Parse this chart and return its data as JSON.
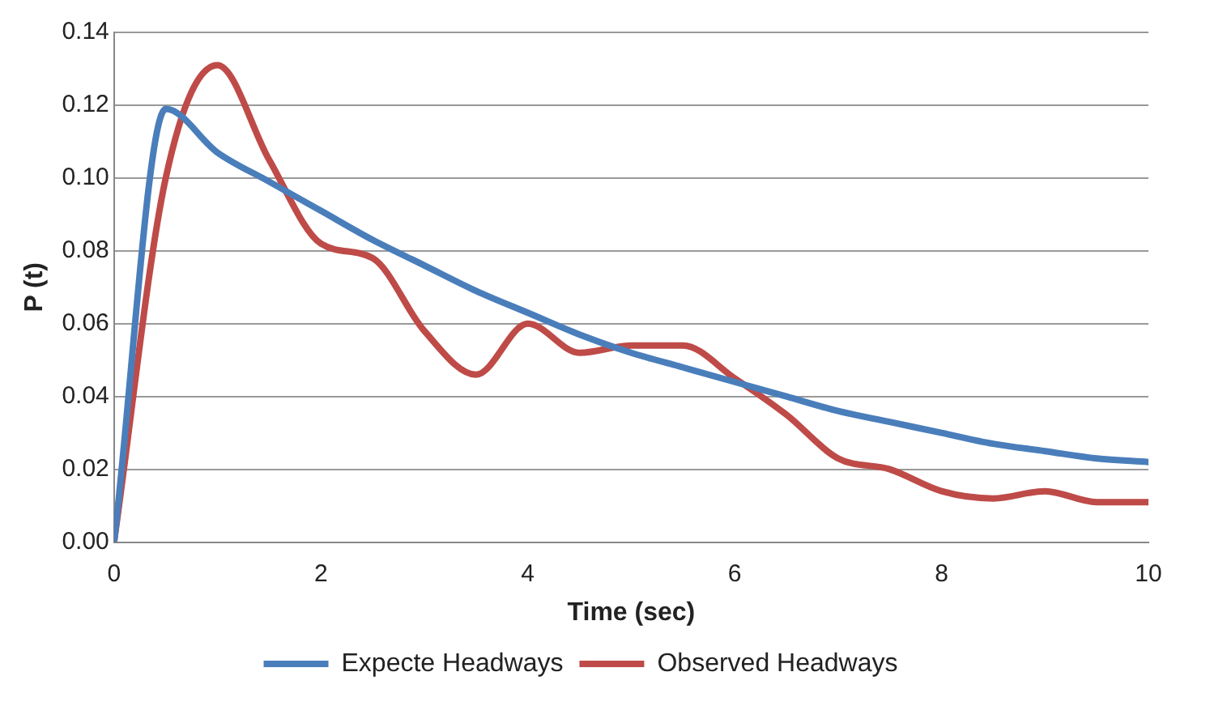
{
  "chart_data": {
    "type": "line",
    "xlabel": "Time (sec)",
    "ylabel": "P (t)",
    "xlim": [
      0,
      10
    ],
    "xticks": [
      0,
      2,
      4,
      6,
      8,
      10
    ],
    "ylim": [
      0,
      0.14
    ],
    "yticks": [
      {
        "value": 0,
        "label": "0.00"
      },
      {
        "value": 0.02,
        "label": "0.02"
      },
      {
        "value": 0.04,
        "label": "0.04"
      },
      {
        "value": 0.06,
        "label": "0.06"
      },
      {
        "value": 0.08,
        "label": "0.08"
      },
      {
        "value": 0.1,
        "label": "0.10"
      },
      {
        "value": 0.12,
        "label": "0.12"
      },
      {
        "value": 0.14,
        "label": "0.14"
      }
    ],
    "grid": "y",
    "legend": "bottom",
    "marker": "none",
    "line_style": "solid",
    "x": [
      0,
      0.5,
      1,
      1.5,
      2,
      2.5,
      3,
      3.5,
      4,
      4.5,
      5,
      5.5,
      6,
      6.5,
      7,
      7.5,
      8,
      8.5,
      9,
      9.5,
      10
    ],
    "series": [
      {
        "name": "Expecte Headways",
        "color": "#4a7ebb",
        "values": [
          0,
          0.119,
          0.107,
          0.099,
          0.091,
          0.083,
          0.076,
          0.069,
          0.063,
          0.057,
          0.052,
          0.048,
          0.044,
          0.04,
          0.036,
          0.033,
          0.03,
          0.027,
          0.025,
          0.023,
          0.022
        ]
      },
      {
        "name": "Observed Headways",
        "color": "#be4b48",
        "values": [
          0,
          0.1,
          0.131,
          0.105,
          0.082,
          0.078,
          0.058,
          0.046,
          0.06,
          0.052,
          0.054,
          0.054,
          0.045,
          0.035,
          0.023,
          0.02,
          0.014,
          0.012,
          0.014,
          0.011,
          0.011
        ]
      }
    ]
  }
}
